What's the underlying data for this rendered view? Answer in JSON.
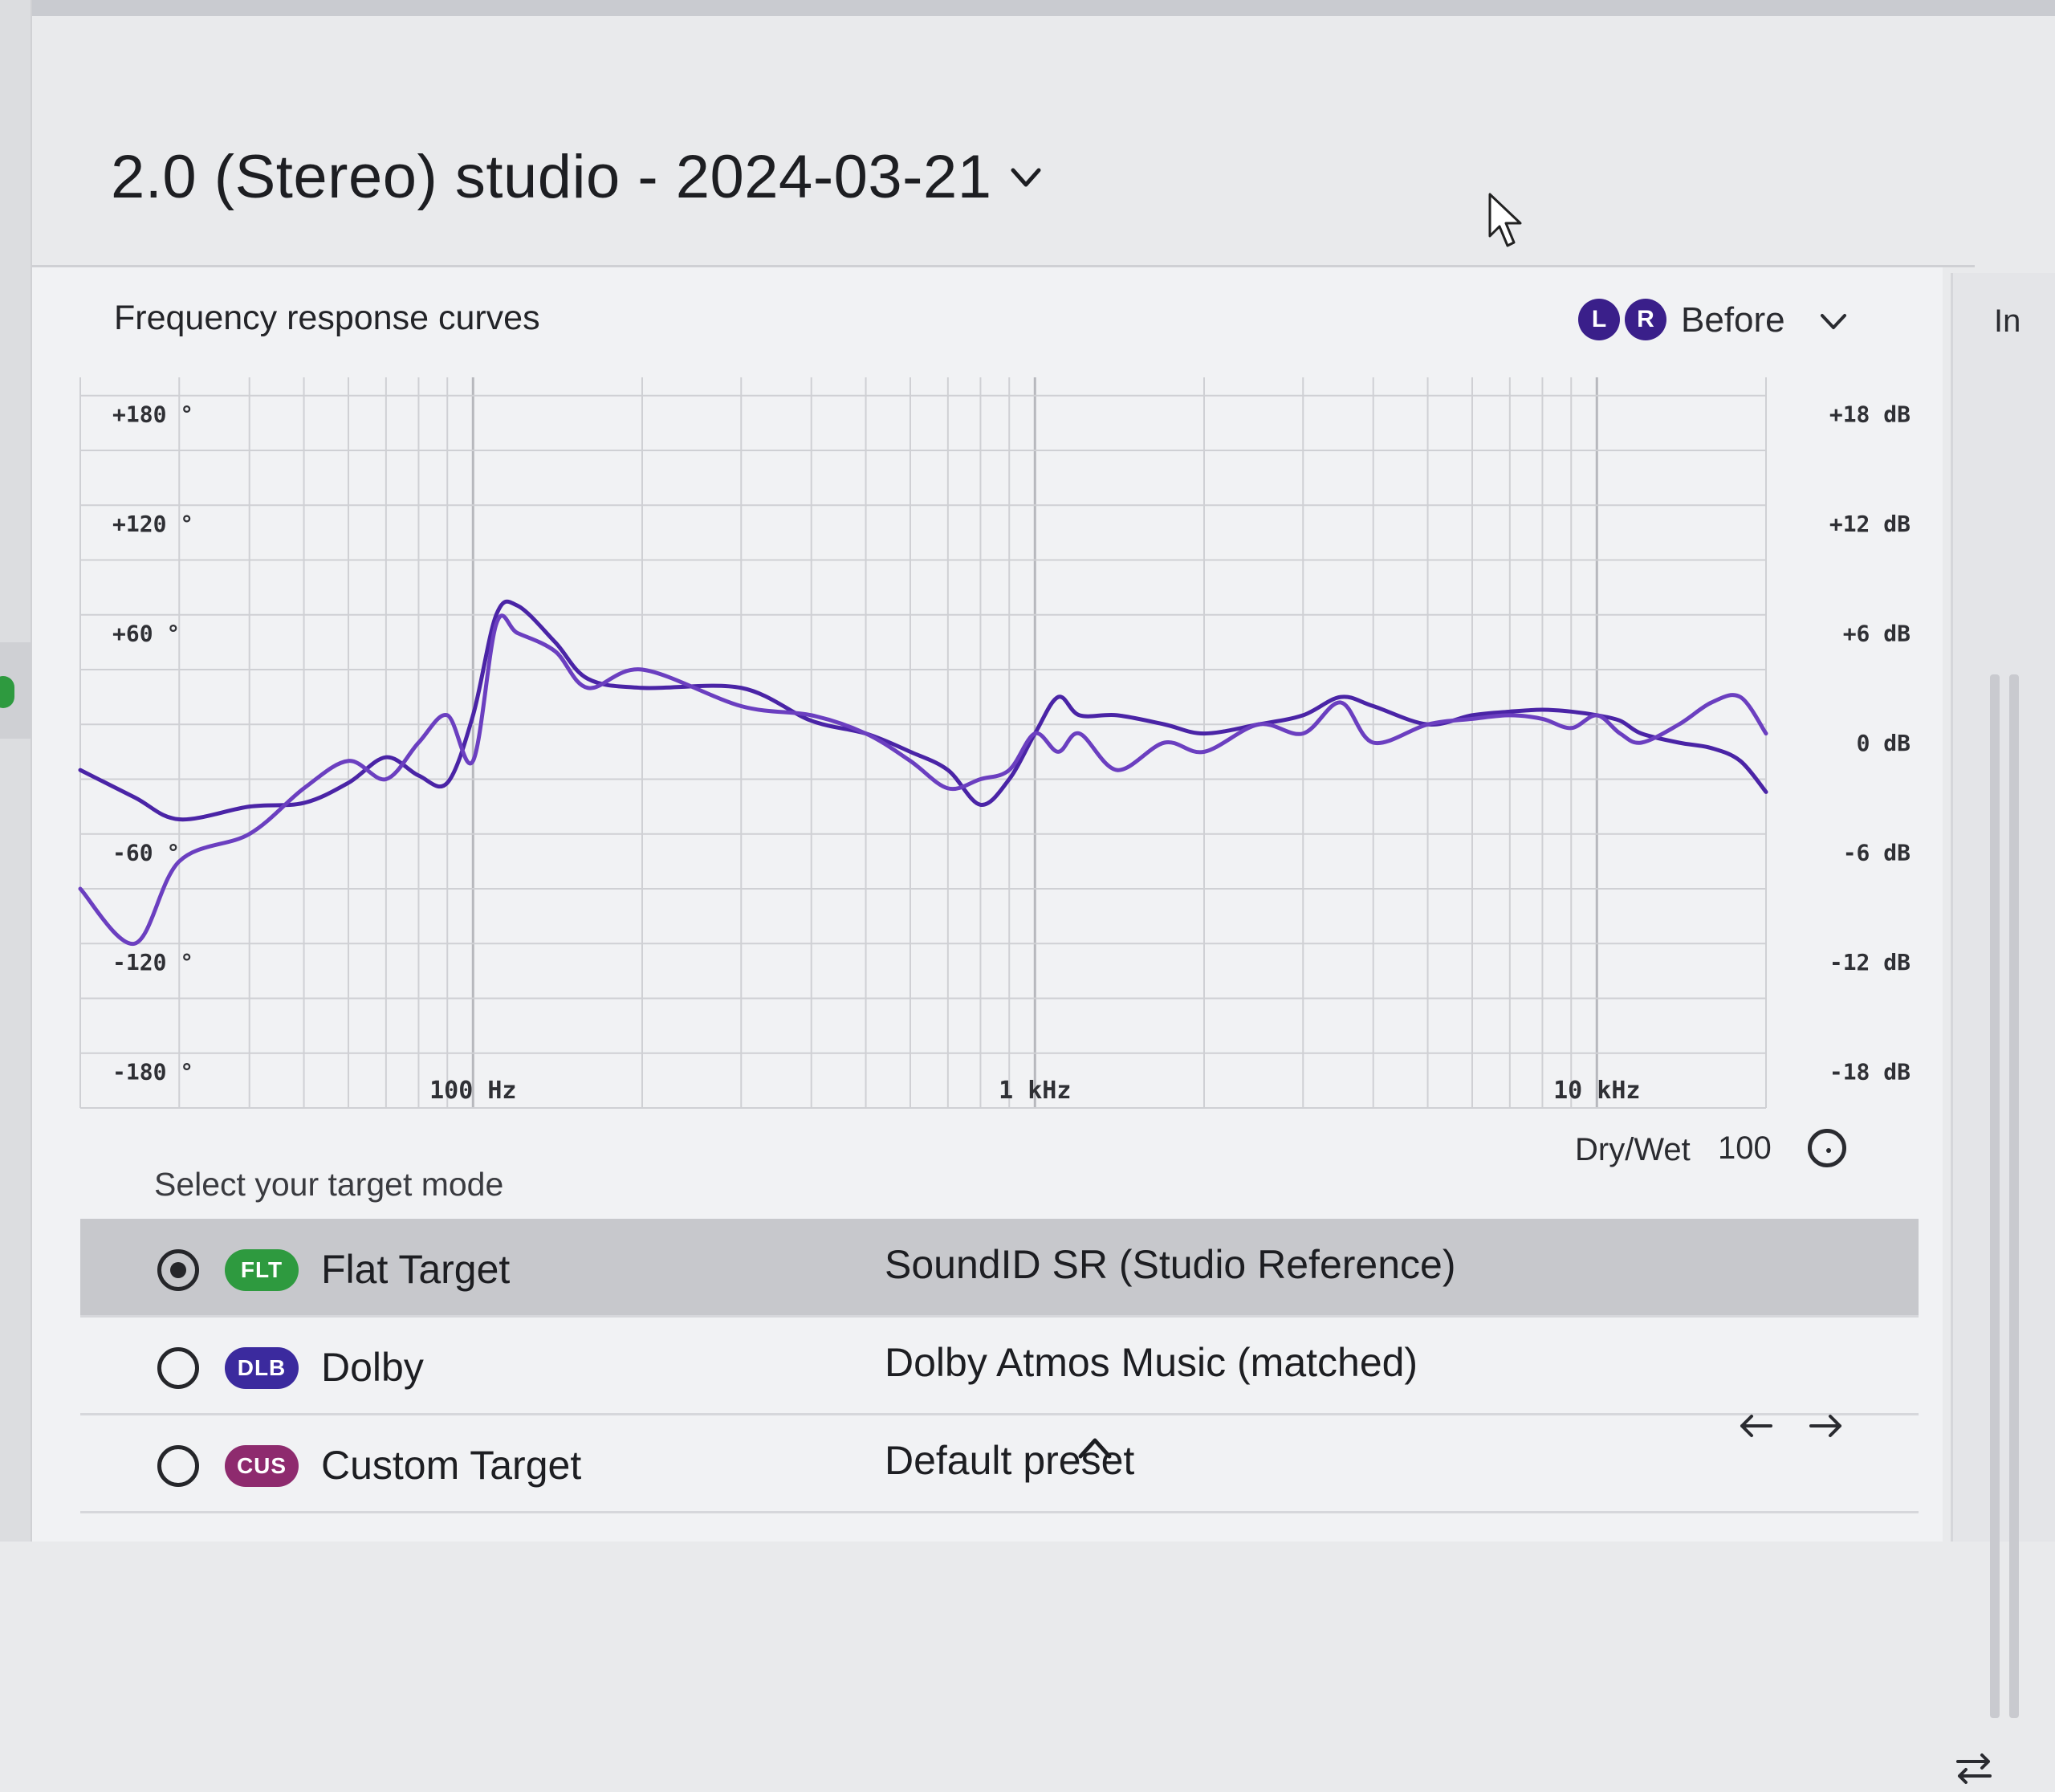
{
  "header": {
    "title": "2.0 (Stereo) studio - 2024-03-21"
  },
  "panel": {
    "title": "Frequency response curves",
    "channels": [
      "L",
      "R"
    ],
    "view_mode": "Before",
    "side_label": "In"
  },
  "chart_data": {
    "type": "line",
    "x_scale": "log",
    "x_ticks": [
      "100 Hz",
      "1 kHz",
      "10 kHz"
    ],
    "x_range_hz": [
      20,
      20000
    ],
    "y_left_ticks": [
      "+180 °",
      "+120 °",
      "+60 °",
      "-60 °",
      "-120 °",
      "-180 °"
    ],
    "y_right_ticks": [
      "+18 dB",
      "+12 dB",
      "+6 dB",
      "0 dB",
      "-6 dB",
      "-12 dB",
      "-18 dB"
    ],
    "y_range_db": [
      -20,
      20
    ],
    "grid": true,
    "series": [
      {
        "color": "#4a24a6",
        "points": [
          [
            20,
            -1.5
          ],
          [
            25,
            -3
          ],
          [
            30,
            -4.2
          ],
          [
            40,
            -3.5
          ],
          [
            50,
            -3.3
          ],
          [
            60,
            -2.2
          ],
          [
            70,
            -0.8
          ],
          [
            80,
            -1.8
          ],
          [
            90,
            -2.2
          ],
          [
            100,
            1.5
          ],
          [
            110,
            7
          ],
          [
            120,
            7.5
          ],
          [
            140,
            5.5
          ],
          [
            160,
            3.5
          ],
          [
            200,
            3
          ],
          [
            300,
            3
          ],
          [
            400,
            1.2
          ],
          [
            500,
            0.5
          ],
          [
            600,
            -0.5
          ],
          [
            700,
            -1.5
          ],
          [
            800,
            -3.4
          ],
          [
            900,
            -2
          ],
          [
            1000,
            0.5
          ],
          [
            1100,
            2.5
          ],
          [
            1200,
            1.5
          ],
          [
            1400,
            1.5
          ],
          [
            1700,
            1
          ],
          [
            2000,
            0.5
          ],
          [
            2500,
            1
          ],
          [
            3000,
            1.5
          ],
          [
            3500,
            2.5
          ],
          [
            4000,
            2
          ],
          [
            5000,
            1
          ],
          [
            6000,
            1.5
          ],
          [
            7000,
            1.7
          ],
          [
            8000,
            1.8
          ],
          [
            9000,
            1.7
          ],
          [
            10000,
            1.5
          ],
          [
            11000,
            1.2
          ],
          [
            12000,
            0.5
          ],
          [
            14000,
            0
          ],
          [
            16000,
            -0.3
          ],
          [
            18000,
            -1
          ],
          [
            20000,
            -2.7
          ]
        ]
      },
      {
        "color": "#6b3fc0",
        "points": [
          [
            20,
            -8
          ],
          [
            25,
            -11
          ],
          [
            30,
            -6.5
          ],
          [
            40,
            -5
          ],
          [
            50,
            -2.5
          ],
          [
            60,
            -1
          ],
          [
            70,
            -2
          ],
          [
            80,
            0
          ],
          [
            90,
            1.5
          ],
          [
            100,
            -1
          ],
          [
            110,
            6.5
          ],
          [
            120,
            6
          ],
          [
            140,
            5
          ],
          [
            160,
            3
          ],
          [
            200,
            4
          ],
          [
            300,
            2
          ],
          [
            400,
            1.5
          ],
          [
            500,
            0.5
          ],
          [
            600,
            -1
          ],
          [
            700,
            -2.5
          ],
          [
            800,
            -2
          ],
          [
            900,
            -1.5
          ],
          [
            1000,
            0.5
          ],
          [
            1100,
            -0.5
          ],
          [
            1200,
            0.5
          ],
          [
            1400,
            -1.5
          ],
          [
            1700,
            0
          ],
          [
            2000,
            -0.5
          ],
          [
            2500,
            1
          ],
          [
            3000,
            0.5
          ],
          [
            3500,
            2.2
          ],
          [
            4000,
            0
          ],
          [
            5000,
            1
          ],
          [
            6000,
            1.3
          ],
          [
            7000,
            1.5
          ],
          [
            8000,
            1.3
          ],
          [
            9000,
            0.8
          ],
          [
            10000,
            1.5
          ],
          [
            11000,
            0.5
          ],
          [
            12000,
            0
          ],
          [
            14000,
            1
          ],
          [
            16000,
            2.2
          ],
          [
            18000,
            2.5
          ],
          [
            20000,
            0.5
          ]
        ]
      }
    ]
  },
  "drywet": {
    "label": "Dry/Wet",
    "value": "100"
  },
  "target_mode": {
    "title": "Select your target mode",
    "rows": [
      {
        "badge": "FLT",
        "badge_color": "#2e9a3f",
        "label": "Flat Target",
        "target": "SoundID SR (Studio Reference)",
        "selected": true
      },
      {
        "badge": "DLB",
        "badge_color": "#3b2a9e",
        "label": "Dolby",
        "target": "Dolby Atmos Music (matched)",
        "selected": false
      },
      {
        "badge": "CUS",
        "badge_color": "#8e2b6e",
        "label": "Custom Target",
        "target": "Default preset",
        "selected": false
      }
    ]
  }
}
